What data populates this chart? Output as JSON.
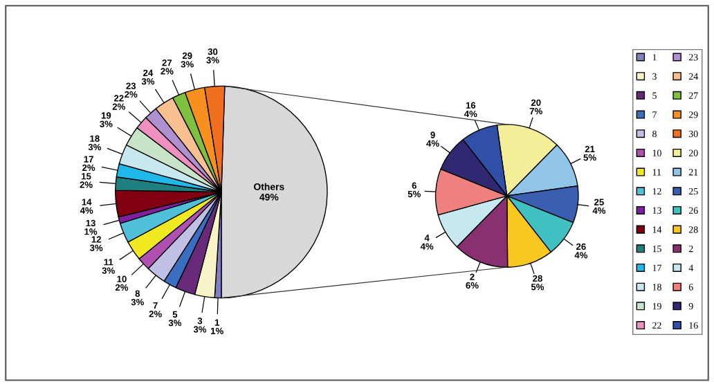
{
  "chart_data": [
    {
      "type": "pie",
      "categories": [
        "1",
        "3",
        "5",
        "7",
        "8",
        "10",
        "11",
        "12",
        "13",
        "14",
        "15",
        "17",
        "18",
        "19",
        "22",
        "23",
        "24",
        "27",
        "29",
        "30",
        "Others"
      ],
      "values": [
        1,
        3,
        3,
        2,
        3,
        2,
        3,
        3,
        1,
        4,
        2,
        2,
        3,
        3,
        2,
        2,
        3,
        2,
        3,
        3,
        49
      ],
      "value_labels": [
        "1%",
        "3%",
        "3%",
        "2%",
        "3%",
        "2%",
        "3%",
        "3%",
        "1%",
        "4%",
        "2%",
        "2%",
        "3%",
        "3%",
        "2%",
        "2%",
        "3%",
        "2%",
        "3%",
        "3%",
        "49%"
      ],
      "legend": "right",
      "colors": [
        "#8080c0",
        "#f8f4c8",
        "#6a2a7a",
        "#3a6ec0",
        "#c0c0e4",
        "#b050b0",
        "#f0e820",
        "#50c0d8",
        "#8020a0",
        "#800010",
        "#208080",
        "#20b8e8",
        "#c8e8f0",
        "#c8e4c8",
        "#f090c0",
        "#b090d0",
        "#f8c090",
        "#80c040",
        "#f89020",
        "#f07020",
        "#d8d8d8"
      ]
    },
    {
      "type": "pie",
      "categories": [
        "20",
        "21",
        "25",
        "26",
        "28",
        "2",
        "4",
        "6",
        "9",
        "16"
      ],
      "values": [
        7,
        5,
        4,
        4,
        5,
        6,
        4,
        5,
        4,
        4
      ],
      "value_labels": [
        "7%",
        "5%",
        "4%",
        "4%",
        "5%",
        "6%",
        "4%",
        "5%",
        "4%",
        "4%"
      ],
      "colors": [
        "#f4ee98",
        "#90c4e8",
        "#3a5eb0",
        "#40c0c0",
        "#f8c820",
        "#883070",
        "#c8e8f0",
        "#f08080",
        "#302870",
        "#3050a8"
      ],
      "legend": "right"
    }
  ]
}
